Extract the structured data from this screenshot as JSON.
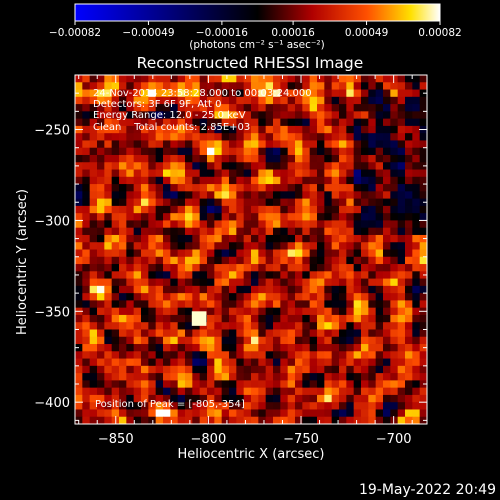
{
  "chart_data": {
    "type": "heatmap",
    "title": "Reconstructed RHESSI Image",
    "xlabel": "Heliocentric X (arcsec)",
    "ylabel": "Heliocentric Y (arcsec)",
    "xlim": [
      -872,
      -682
    ],
    "ylim": [
      -412,
      -220
    ],
    "xticks": [
      -850,
      -800,
      -750,
      -700
    ],
    "yticks": [
      -400,
      -350,
      -300,
      -250
    ],
    "xtick_labels": [
      "-850",
      "-800",
      "-750",
      "-700"
    ],
    "ytick_labels": [
      "-400",
      "-350",
      "-300",
      "-250"
    ],
    "colorbar": {
      "ticks": [
        -0.00082,
        -0.00049,
        -0.00016,
        0.00016,
        0.00049,
        0.00082
      ],
      "tick_labels": [
        "-0.00082",
        "-0.00049",
        "-0.00016",
        "0.00016",
        "0.00049",
        "0.00082"
      ],
      "range": [
        -0.00082,
        0.00082
      ],
      "units_label": "(photons cm⁻² s⁻¹ asec⁻²)",
      "colormap": "blue-black-red-yellow-white"
    },
    "annotations": [
      "24-Nov-2014 23:58:28.000 to 00:03:24.000",
      "Detectors: 3F 6F 9F, Att 0",
      "Energy Range: 12.0 - 25.0 keV",
      "Clean    Total counts: 2.85E+03",
      "Position of Peak = [-805,-354]"
    ],
    "peak": {
      "x": -805,
      "y": -354
    },
    "grid_size": [
      48,
      48
    ]
  },
  "footer": {
    "timestamp": "19-May-2022 20:49"
  },
  "colors": {
    "background": "#000000",
    "foreground": "#ffffff"
  }
}
